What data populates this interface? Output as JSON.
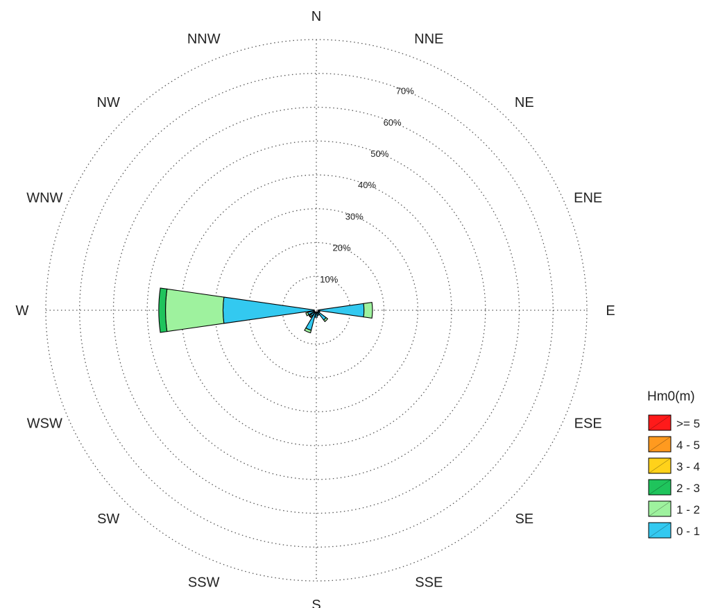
{
  "chart_data": {
    "type": "rose",
    "title": "",
    "directions": [
      "N",
      "NNE",
      "NE",
      "ENE",
      "E",
      "ESE",
      "SE",
      "SSE",
      "S",
      "SSW",
      "SW",
      "WSW",
      "W",
      "WNW",
      "NW",
      "NNW"
    ],
    "radial_ticks": [
      "10%",
      "20%",
      "30%",
      "40%",
      "50%",
      "60%",
      "70%"
    ],
    "radial_max_percent": 80,
    "legend_title": "Hm0(m)",
    "series": [
      {
        "name": "0 - 1",
        "color": "#33c9f0",
        "values": [
          0,
          0,
          0,
          0,
          13.5,
          0.5,
          3.0,
          1.0,
          1.5,
          5.5,
          1.5,
          2.0,
          27.0,
          0,
          0,
          0
        ]
      },
      {
        "name": "1 - 2",
        "color": "#9ef29e",
        "values": [
          0,
          0,
          0,
          0,
          2.5,
          0,
          0.6,
          0,
          0,
          0.8,
          0.4,
          0.6,
          17.0,
          0,
          0,
          0
        ]
      },
      {
        "name": "2 - 3",
        "color": "#1fc45c",
        "values": [
          0,
          0,
          0,
          0,
          0,
          0,
          0,
          0,
          0,
          0,
          0.2,
          0,
          2.0,
          0,
          0,
          0
        ]
      },
      {
        "name": "3 - 4",
        "color": "#ffd21a",
        "values": [
          0,
          0,
          0,
          0,
          0,
          0,
          0,
          0,
          0,
          0,
          0,
          0,
          0,
          0,
          0,
          0
        ]
      },
      {
        "name": "4 - 5",
        "color": "#ff9a1f",
        "values": [
          0,
          0,
          0,
          0,
          0,
          0,
          0,
          0,
          0,
          0,
          0,
          0,
          0,
          0,
          0,
          0
        ]
      },
      {
        "name": ">= 5",
        "color": "#ff1a1a",
        "values": [
          0,
          0,
          0,
          0,
          0,
          0,
          0,
          0,
          0,
          0,
          0,
          0,
          0,
          0,
          0,
          0
        ]
      }
    ],
    "legend_order": [
      ">= 5",
      "4 - 5",
      "3 - 4",
      "2 - 3",
      "1 - 2",
      "0 - 1"
    ],
    "grid": true,
    "legend_position": "bottom-right"
  }
}
